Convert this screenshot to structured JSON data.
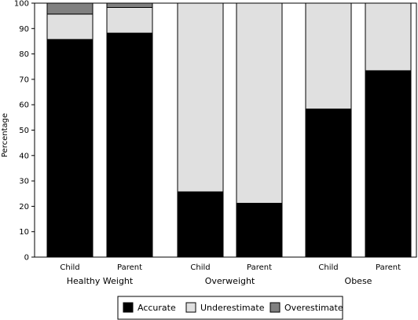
{
  "chart_data": {
    "type": "bar",
    "stacked": true,
    "ylabel": "Percentage",
    "ylim": [
      0,
      100
    ],
    "yticks": [
      0,
      10,
      20,
      30,
      40,
      50,
      60,
      70,
      80,
      90,
      100
    ],
    "groups": [
      {
        "label": "Healthy Weight",
        "categories": [
          "Child",
          "Parent"
        ]
      },
      {
        "label": "Overweight",
        "categories": [
          "Child",
          "Parent"
        ]
      },
      {
        "label": "Obese",
        "categories": [
          "Child",
          "Parent"
        ]
      }
    ],
    "categories": [
      "Child",
      "Parent",
      "Child",
      "Parent",
      "Child",
      "Parent"
    ],
    "series": [
      {
        "name": "Accurate",
        "color": "#000000",
        "values": [
          85.7,
          88.2,
          25.7,
          21.2,
          58.3,
          73.4
        ]
      },
      {
        "name": "Underestimate",
        "color": "#e0e0e0",
        "values": [
          10.0,
          10.1,
          74.3,
          78.8,
          41.7,
          26.6
        ]
      },
      {
        "name": "Overestimate",
        "color": "#808080",
        "values": [
          4.3,
          1.7,
          0,
          0,
          0,
          0
        ]
      }
    ],
    "legend_position": "bottom-center",
    "grid": false
  }
}
